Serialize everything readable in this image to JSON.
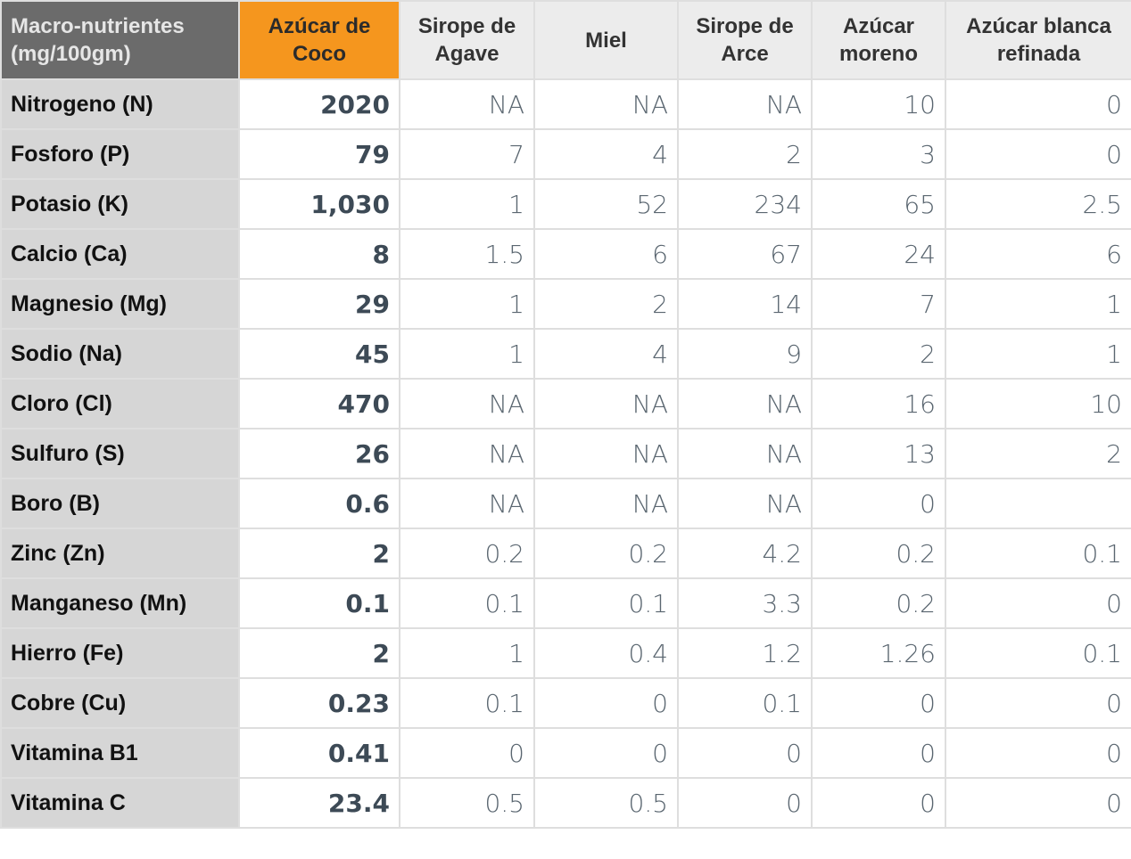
{
  "table": {
    "header": [
      "Macro-nutrientes (mg/100gm)",
      "Azúcar de Coco",
      "Sirope de Agave",
      "Miel",
      "Sirope de Arce",
      "Azúcar moreno",
      "Azúcar blanca refinada"
    ],
    "rows": [
      [
        "Nitrogeno (N)",
        "2020",
        "NA",
        "NA",
        "NA",
        "10",
        "0"
      ],
      [
        "Fosforo (P)",
        "79",
        "7",
        "4",
        "2",
        "3",
        "0"
      ],
      [
        "Potasio (K)",
        "1,030",
        "1",
        "52",
        "234",
        "65",
        "2.5"
      ],
      [
        "Calcio (Ca)",
        "8",
        "1.5",
        "6",
        "67",
        "24",
        "6"
      ],
      [
        "Magnesio (Mg)",
        "29",
        "1",
        "2",
        "14",
        "7",
        "1"
      ],
      [
        "Sodio (Na)",
        "45",
        "1",
        "4",
        "9",
        "2",
        "1"
      ],
      [
        "Cloro (Cl)",
        "470",
        "NA",
        "NA",
        "NA",
        "16",
        "10"
      ],
      [
        "Sulfuro (S)",
        "26",
        "NA",
        "NA",
        "NA",
        "13",
        "2"
      ],
      [
        "Boro (B)",
        "0.6",
        "NA",
        "NA",
        "NA",
        "0",
        null
      ],
      [
        "Zinc (Zn)",
        "2",
        "0.2",
        "0.2",
        "4.2",
        "0.2",
        "0.1"
      ],
      [
        "Manganeso (Mn)",
        "0.1",
        "0.1",
        "0.1",
        "3.3",
        "0.2",
        "0"
      ],
      [
        "Hierro (Fe)",
        "2",
        "1",
        "0.4",
        "1.2",
        "1.26",
        "0.1"
      ],
      [
        "Cobre (Cu)",
        "0.23",
        "0.1",
        "0",
        "0.1",
        "0",
        "0"
      ],
      [
        "Vitamina B1",
        "0.41",
        "0",
        "0",
        "0",
        "0",
        "0"
      ],
      [
        "Vitamina C",
        "23.4",
        "0.5",
        "0.5",
        "0",
        "0",
        "0"
      ]
    ]
  }
}
